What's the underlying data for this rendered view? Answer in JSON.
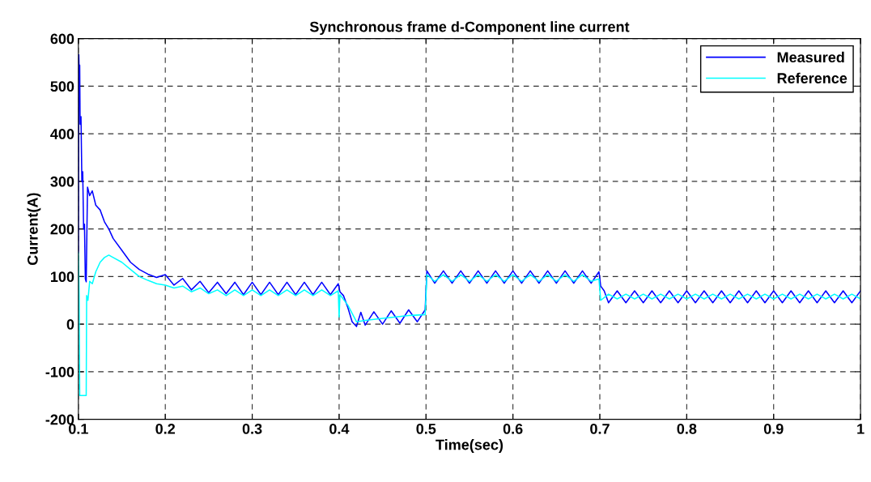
{
  "chart_data": {
    "type": "line",
    "title": "Synchronous frame d-Component line current",
    "xlabel": "Time(sec)",
    "ylabel": "Current(A)",
    "xlim": [
      0.1,
      1
    ],
    "xticks": [
      0.1,
      0.2,
      0.3,
      0.4,
      0.5,
      0.6,
      0.7,
      0.8,
      0.9,
      1
    ],
    "ylim": [
      -200,
      600
    ],
    "yticks": [
      -200,
      -100,
      0,
      100,
      200,
      300,
      400,
      500,
      600
    ],
    "grid": true,
    "legend": "top right",
    "line_style": "solid",
    "marker": "none",
    "series": [
      {
        "name": "Measured",
        "color": "#0000ff",
        "x": [
          0.1,
          0.1005,
          0.101,
          0.1015,
          0.102,
          0.103,
          0.104,
          0.105,
          0.106,
          0.107,
          0.108,
          0.109,
          0.1105,
          0.113,
          0.116,
          0.12,
          0.125,
          0.13,
          0.135,
          0.14,
          0.15,
          0.16,
          0.17,
          0.18,
          0.19,
          0.2,
          0.21,
          0.22,
          0.23,
          0.24,
          0.25,
          0.26,
          0.27,
          0.28,
          0.29,
          0.3,
          0.31,
          0.32,
          0.33,
          0.34,
          0.35,
          0.36,
          0.37,
          0.38,
          0.39,
          0.399,
          0.401,
          0.405,
          0.41,
          0.415,
          0.42,
          0.425,
          0.43,
          0.44,
          0.45,
          0.46,
          0.47,
          0.48,
          0.49,
          0.499,
          0.501,
          0.51,
          0.52,
          0.53,
          0.54,
          0.55,
          0.56,
          0.57,
          0.58,
          0.59,
          0.6,
          0.61,
          0.62,
          0.63,
          0.64,
          0.65,
          0.66,
          0.67,
          0.68,
          0.69,
          0.699,
          0.701,
          0.705,
          0.71,
          0.72,
          0.73,
          0.74,
          0.75,
          0.76,
          0.77,
          0.78,
          0.79,
          0.8,
          0.81,
          0.82,
          0.83,
          0.84,
          0.85,
          0.86,
          0.87,
          0.88,
          0.89,
          0.9,
          0.91,
          0.92,
          0.93,
          0.94,
          0.95,
          0.96,
          0.97,
          0.98,
          0.99,
          1
        ],
        "values": [
          150,
          566,
          520,
          544,
          420,
          436,
          300,
          320,
          200,
          210,
          95,
          89,
          288,
          270,
          280,
          250,
          240,
          215,
          200,
          180,
          155,
          130,
          115,
          105,
          98,
          104,
          82,
          96,
          72,
          90,
          66,
          88,
          64,
          88,
          62,
          88,
          62,
          88,
          62,
          88,
          62,
          88,
          62,
          88,
          62,
          85,
          68,
          60,
          35,
          5,
          -5,
          25,
          -2,
          26,
          0,
          28,
          2,
          30,
          5,
          30,
          112,
          86,
          112,
          86,
          112,
          86,
          112,
          86,
          112,
          86,
          112,
          86,
          112,
          86,
          112,
          86,
          112,
          86,
          112,
          86,
          110,
          80,
          70,
          45,
          70,
          45,
          70,
          45,
          70,
          45,
          70,
          45,
          70,
          45,
          70,
          45,
          70,
          45,
          70,
          45,
          70,
          45,
          70,
          45,
          70,
          45,
          70,
          45,
          70,
          45,
          70,
          45,
          70
        ]
      },
      {
        "name": "Reference",
        "color": "#00ffff",
        "x": [
          0.1,
          0.1008,
          0.1015,
          0.109,
          0.1095,
          0.111,
          0.113,
          0.116,
          0.12,
          0.125,
          0.13,
          0.135,
          0.14,
          0.15,
          0.16,
          0.17,
          0.18,
          0.19,
          0.2,
          0.21,
          0.22,
          0.23,
          0.24,
          0.25,
          0.26,
          0.27,
          0.28,
          0.29,
          0.3,
          0.31,
          0.32,
          0.33,
          0.34,
          0.35,
          0.36,
          0.37,
          0.38,
          0.39,
          0.399,
          0.4,
          0.401,
          0.41,
          0.42,
          0.43,
          0.45,
          0.48,
          0.499,
          0.501,
          0.51,
          0.52,
          0.53,
          0.54,
          0.55,
          0.56,
          0.57,
          0.58,
          0.59,
          0.6,
          0.61,
          0.62,
          0.63,
          0.64,
          0.65,
          0.66,
          0.67,
          0.68,
          0.69,
          0.699,
          0.701,
          0.71,
          0.72,
          0.73,
          0.74,
          0.75,
          0.76,
          0.77,
          0.78,
          0.79,
          0.8,
          0.81,
          0.82,
          0.83,
          0.84,
          0.85,
          0.86,
          0.87,
          0.88,
          0.89,
          0.9,
          0.91,
          0.92,
          0.93,
          0.94,
          0.95,
          0.96,
          0.97,
          0.98,
          0.99,
          1
        ],
        "values": [
          150,
          60,
          -150,
          -150,
          60,
          50,
          90,
          85,
          110,
          130,
          140,
          145,
          140,
          130,
          115,
          100,
          92,
          85,
          82,
          76,
          80,
          68,
          76,
          64,
          72,
          60,
          72,
          60,
          72,
          60,
          72,
          60,
          72,
          60,
          72,
          60,
          72,
          60,
          70,
          15,
          62,
          40,
          5,
          8,
          12,
          18,
          20,
          104,
          90,
          104,
          90,
          104,
          90,
          104,
          90,
          104,
          90,
          104,
          90,
          104,
          90,
          104,
          90,
          104,
          90,
          104,
          90,
          95,
          50,
          63,
          53,
          63,
          53,
          63,
          53,
          63,
          53,
          63,
          53,
          63,
          53,
          63,
          53,
          63,
          53,
          63,
          53,
          63,
          53,
          63,
          53,
          63,
          53,
          63,
          53,
          63,
          53,
          63,
          53
        ]
      }
    ]
  }
}
